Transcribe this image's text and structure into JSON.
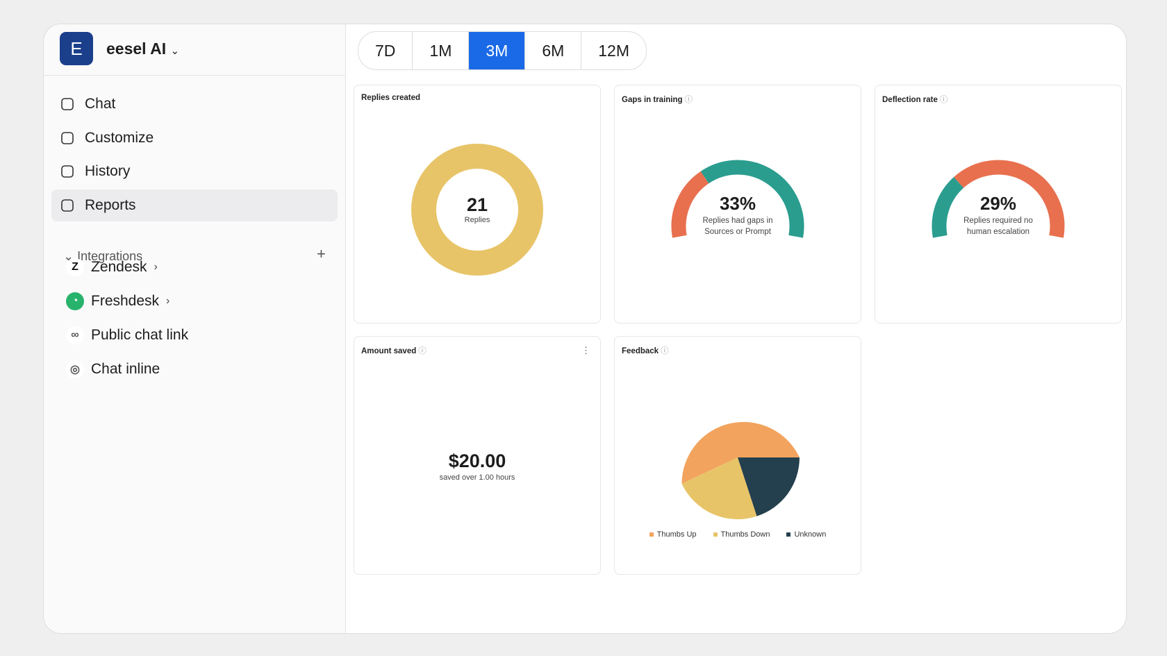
{
  "sidebar": {
    "workspace_initial": "E",
    "workspace": "eesel AI",
    "nav": [
      "Chat",
      "Customize",
      "History",
      "Reports"
    ],
    "active_nav": 3,
    "integrations_title": "Integrations",
    "integrations": [
      "Zendesk",
      "Freshdesk",
      "Public chat link",
      "Chat inline"
    ]
  },
  "range_tabs": [
    "7D",
    "1M",
    "3M",
    "6M",
    "12M"
  ],
  "selected_tab": 2,
  "chart_data": [
    {
      "type": "donut",
      "title": "Replies created",
      "values": [
        21
      ],
      "color": "#e8c468",
      "center_label": "Replies"
    },
    {
      "type": "gauge",
      "title": "Gaps in training",
      "values": [
        33
      ],
      "value_labels": [
        "33%"
      ],
      "colors": [
        "#e8704f",
        "#2a9d8f"
      ],
      "caption": "Replies had gaps in Sources or Prompt"
    },
    {
      "type": "gauge",
      "title": "Deflection rate",
      "values": [
        29
      ],
      "value_labels": [
        "29%"
      ],
      "colors": [
        "#2a9d8f",
        "#e8704f"
      ],
      "caption": "Replies required no human escalation"
    },
    {
      "type": "stat",
      "title": "Amount saved",
      "value_text": "$20.00",
      "caption": "saved over 1.00 hours"
    },
    {
      "type": "pie",
      "title": "Feedback",
      "categories": [
        "Thumbs Up",
        "Thumbs Down",
        "Unknown"
      ],
      "values": [
        57,
        23,
        20
      ],
      "colors": [
        "#f2a35e",
        "#e8c468",
        "#24404e"
      ]
    }
  ]
}
